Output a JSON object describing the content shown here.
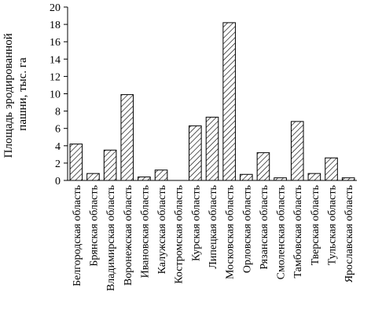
{
  "chart_data": {
    "type": "bar",
    "ylabel_line1": "Площадь эродированной",
    "ylabel_line2": "пашни, тыс. га",
    "ylim": [
      0,
      20
    ],
    "yticks": [
      0,
      2,
      4,
      6,
      8,
      10,
      12,
      14,
      16,
      18,
      20
    ],
    "grid": false,
    "bar_fill": "hatched",
    "categories": [
      "Белгородская область",
      "Брянская область",
      "Владимирская область",
      "Воронежская область",
      "Ивановская область",
      "Калужская область",
      "Костромская область",
      "Курская область",
      "Липецкая область",
      "Московская область",
      "Орловская область",
      "Рязанская область",
      "Смоленская область",
      "Тамбовская область",
      "Тверская область",
      "Тульская область",
      "Ярославская область"
    ],
    "values": [
      4.2,
      0.8,
      3.5,
      9.9,
      0.4,
      1.2,
      0,
      6.3,
      7.3,
      18.2,
      0.7,
      3.2,
      0.3,
      6.8,
      0.8,
      2.6,
      0.3
    ]
  }
}
